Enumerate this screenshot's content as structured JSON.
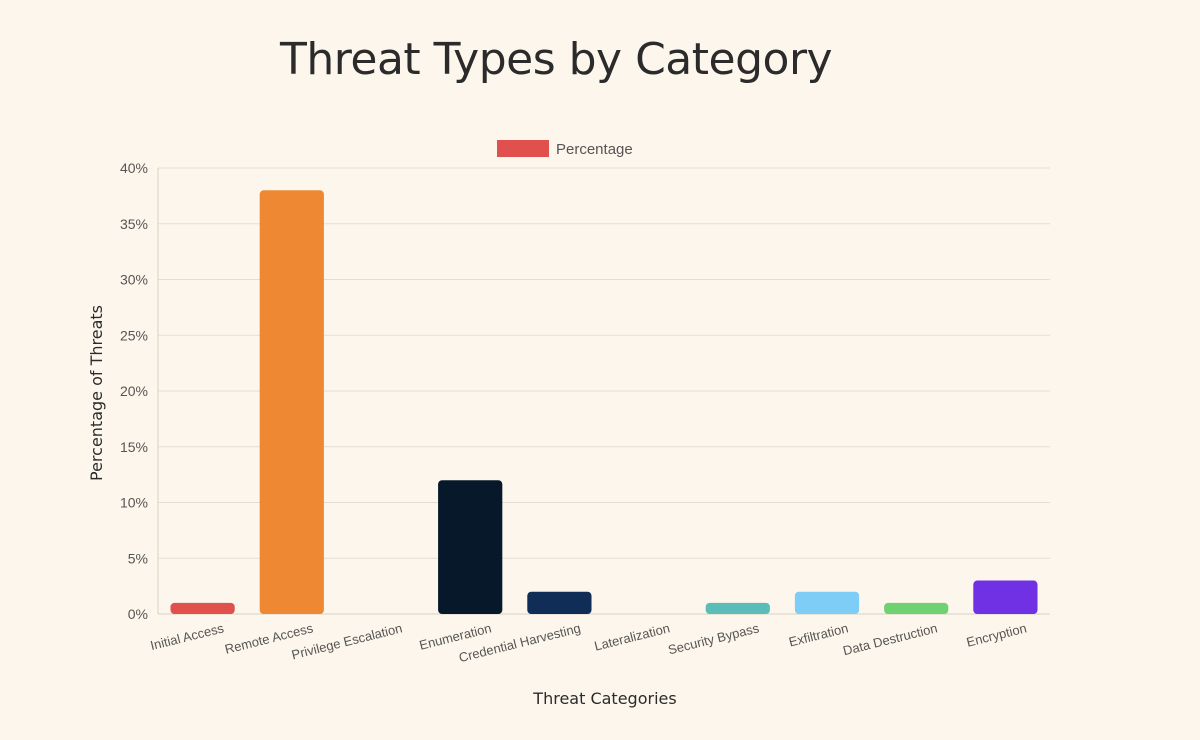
{
  "chart_data": {
    "type": "bar",
    "title": "Threat Types by Category",
    "xlabel": "Threat Categories",
    "ylabel": "Percentage of Threats",
    "legend": {
      "label": "Percentage",
      "color": "#e0504d",
      "placement": "top-center"
    },
    "categories": [
      "Initial Access",
      "Remote Access",
      "Privilege Escalation",
      "Enumeration",
      "Credential Harvesting",
      "Lateralization",
      "Security Bypass",
      "Exfiltration",
      "Data Destruction",
      "Encryption"
    ],
    "series": [
      {
        "name": "Percentage",
        "values": [
          1,
          38,
          0,
          12,
          2,
          0,
          1,
          2,
          1,
          3
        ]
      }
    ],
    "colors": [
      "#e0504d",
      "#ef8833",
      "#c9a227",
      "#07182b",
      "#0f2d57",
      "#ffcc33",
      "#5bbdb7",
      "#7ecdf7",
      "#6fd172",
      "#7030e3"
    ],
    "ylim": [
      0,
      40
    ],
    "yticks": [
      0,
      5,
      10,
      15,
      20,
      25,
      30,
      35,
      40
    ],
    "ytick_suffix": "%",
    "grid": true
  }
}
